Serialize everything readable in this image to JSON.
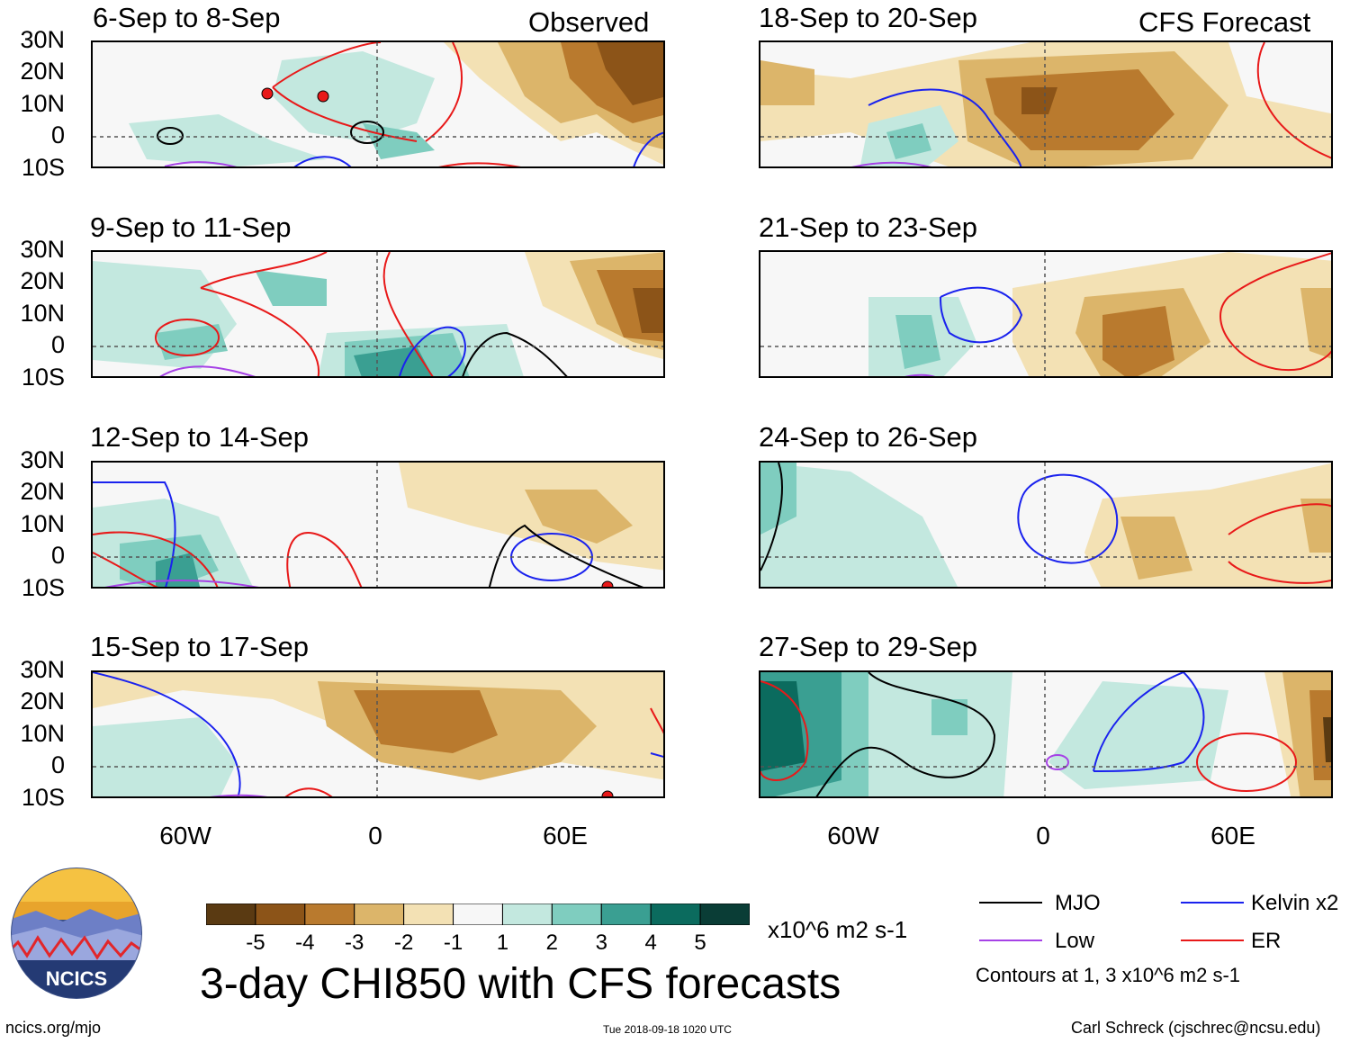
{
  "header": {
    "observed_label": "Observed",
    "forecast_label": "CFS Forecast"
  },
  "panels": [
    {
      "title": "6-Sep to 8-Sep",
      "group": "observed"
    },
    {
      "title": "9-Sep to 11-Sep",
      "group": "observed"
    },
    {
      "title": "12-Sep to 14-Sep",
      "group": "observed"
    },
    {
      "title": "15-Sep to 17-Sep",
      "group": "observed"
    },
    {
      "title": "18-Sep to 20-Sep",
      "group": "forecast"
    },
    {
      "title": "21-Sep to 23-Sep",
      "group": "forecast"
    },
    {
      "title": "24-Sep to 26-Sep",
      "group": "forecast"
    },
    {
      "title": "27-Sep to 29-Sep",
      "group": "forecast"
    }
  ],
  "axes": {
    "lat_labels": [
      "30N",
      "20N",
      "10N",
      "0",
      "10S"
    ],
    "lon_labels": [
      "60W",
      "0",
      "60E"
    ]
  },
  "colorbar": {
    "ticks": [
      "-5",
      "-4",
      "-3",
      "-2",
      "-1",
      "1",
      "2",
      "3",
      "4",
      "5"
    ],
    "colors": [
      "#5a3a12",
      "#8c5418",
      "#b97a2e",
      "#dcb56a",
      "#f3e1b4",
      "#f7f7f7",
      "#c3e8df",
      "#7fcdbf",
      "#3a9f92",
      "#0b6b5e",
      "#0a3d36"
    ],
    "units": "x10^6 m2 s-1"
  },
  "legend": {
    "items": [
      {
        "label": "MJO",
        "color": "#000000"
      },
      {
        "label": "Kelvin x2",
        "color": "#1a22ee"
      },
      {
        "label": "Low",
        "color": "#a642e6"
      },
      {
        "label": "ER",
        "color": "#e81919"
      }
    ],
    "note": "Contours at 1, 3 x10^6 m2 s-1"
  },
  "footer": {
    "title": "3-day CHI850 with CFS forecasts",
    "org": "NCICS",
    "url": "ncics.org/mjo",
    "timestamp": "Tue 2018-09-18 1020 UTC",
    "credit": "Carl Schreck (cjschrec@ncsu.edu)"
  }
}
